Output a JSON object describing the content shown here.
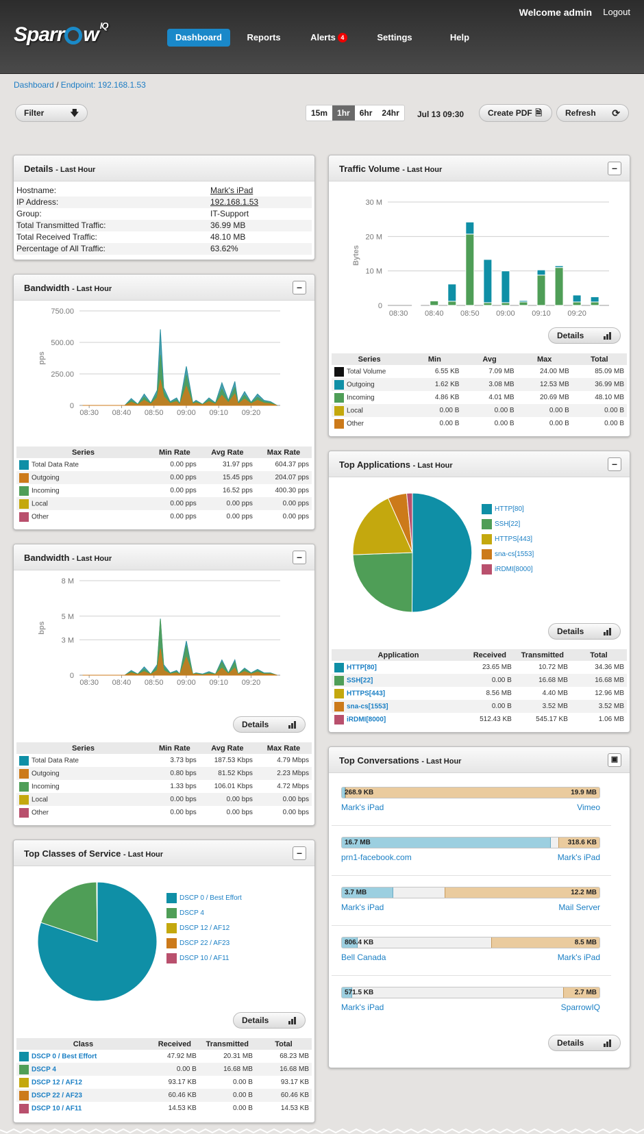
{
  "header": {
    "welcome": "Welcome admin",
    "logout": "Logout",
    "logo": "Sparr",
    "logo_tail": "w",
    "logo_sup": "IQ"
  },
  "nav": [
    {
      "label": "Dashboard"
    },
    {
      "label": "Reports"
    },
    {
      "label": "Alerts",
      "badge": "4"
    },
    {
      "label": "Settings"
    },
    {
      "label": "Help"
    }
  ],
  "breadcrumb": {
    "home": "Dashboard",
    "sep": "/",
    "current": "Endpoint: 192.168.1.53"
  },
  "toolbar": {
    "filter": "Filter",
    "ranges": [
      "15m",
      "1hr",
      "6hr",
      "24hr"
    ],
    "selected_range": "1hr",
    "datetime": "Jul 13 09:30",
    "create_pdf": "Create PDF",
    "refresh": "Refresh"
  },
  "details": {
    "title": "Details",
    "subtitle": "- Last Hour",
    "rows": [
      {
        "label": "Hostname:",
        "value": "Mark's iPad"
      },
      {
        "label": "IP Address:",
        "value": "192.168.1.53"
      },
      {
        "label": "Group:",
        "value": "IT-Support"
      },
      {
        "label": "Total Transmitted Traffic:",
        "value": "36.99 MB"
      },
      {
        "label": "Total Received Traffic:",
        "value": "48.10 MB"
      },
      {
        "label": "Percentage of All Traffic:",
        "value": "63.62%"
      }
    ]
  },
  "bw_pps": {
    "title": "Bandwidth",
    "subtitle": "- Last Hour",
    "headers": [
      "Series",
      "Min Rate",
      "Avg Rate",
      "Max Rate"
    ],
    "rows": [
      {
        "name": "Total Data Rate",
        "color": "#0f8fa6",
        "min": "0.00 pps",
        "avg": "31.97 pps",
        "max": "604.37 pps"
      },
      {
        "name": "Outgoing",
        "color": "#cc7a1a",
        "min": "0.00 pps",
        "avg": "15.45 pps",
        "max": "204.07 pps"
      },
      {
        "name": "Incoming",
        "color": "#4f9e57",
        "min": "0.00 pps",
        "avg": "16.52 pps",
        "max": "400.30 pps"
      },
      {
        "name": "Local",
        "color": "#c4a80e",
        "min": "0.00 pps",
        "avg": "0.00 pps",
        "max": "0.00 pps"
      },
      {
        "name": "Other",
        "color": "#b9506d",
        "min": "0.00 pps",
        "avg": "0.00 pps",
        "max": "0.00 pps"
      }
    ]
  },
  "bw_bps": {
    "title": "Bandwidth",
    "subtitle": "- Last Hour",
    "details": "Details",
    "headers": [
      "Series",
      "Min Rate",
      "Avg Rate",
      "Max Rate"
    ],
    "rows": [
      {
        "name": "Total Data Rate",
        "color": "#0f8fa6",
        "min": "3.73 bps",
        "avg": "187.53 Kbps",
        "max": "4.79 Mbps"
      },
      {
        "name": "Outgoing",
        "color": "#cc7a1a",
        "min": "0.80 bps",
        "avg": "81.52 Kbps",
        "max": "2.23 Mbps"
      },
      {
        "name": "Incoming",
        "color": "#4f9e57",
        "min": "1.33 bps",
        "avg": "106.01 Kbps",
        "max": "4.72 Mbps"
      },
      {
        "name": "Local",
        "color": "#c4a80e",
        "min": "0.00 bps",
        "avg": "0.00 bps",
        "max": "0.00 bps"
      },
      {
        "name": "Other",
        "color": "#b9506d",
        "min": "0.00 bps",
        "avg": "0.00 bps",
        "max": "0.00 bps"
      }
    ]
  },
  "cos": {
    "title": "Top Classes of Service",
    "subtitle": "- Last Hour",
    "details": "Details",
    "headers": [
      "Class",
      "Received",
      "Transmitted",
      "Total"
    ],
    "rows": [
      {
        "name": "DSCP 0 / Best Effort",
        "color": "#0f8fa6",
        "rx": "47.92 MB",
        "tx": "20.31 MB",
        "total": "68.23 MB"
      },
      {
        "name": "DSCP 4",
        "color": "#4f9e57",
        "rx": "0.00 B",
        "tx": "16.68 MB",
        "total": "16.68 MB"
      },
      {
        "name": "DSCP 12 / AF12",
        "color": "#c4a80e",
        "rx": "93.17 KB",
        "tx": "0.00 B",
        "total": "93.17 KB"
      },
      {
        "name": "DSCP 22 / AF23",
        "color": "#cc7a1a",
        "rx": "60.46 KB",
        "tx": "0.00 B",
        "total": "60.46 KB"
      },
      {
        "name": "DSCP 10 / AF11",
        "color": "#b9506d",
        "rx": "14.53 KB",
        "tx": "0.00 B",
        "total": "14.53 KB"
      }
    ]
  },
  "traffic": {
    "title": "Traffic Volume",
    "subtitle": "- Last Hour",
    "details": "Details",
    "headers": [
      "Series",
      "Min",
      "Avg",
      "Max",
      "Total"
    ],
    "rows": [
      {
        "name": "Total Volume",
        "color": "#111111",
        "min": "6.55 KB",
        "avg": "7.09 MB",
        "max": "24.00 MB",
        "total": "85.09 MB"
      },
      {
        "name": "Outgoing",
        "color": "#0f8fa6",
        "min": "1.62 KB",
        "avg": "3.08 MB",
        "max": "12.53 MB",
        "total": "36.99 MB"
      },
      {
        "name": "Incoming",
        "color": "#4f9e57",
        "min": "4.86 KB",
        "avg": "4.01 MB",
        "max": "20.69 MB",
        "total": "48.10 MB"
      },
      {
        "name": "Local",
        "color": "#c4a80e",
        "min": "0.00 B",
        "avg": "0.00 B",
        "max": "0.00 B",
        "total": "0.00 B"
      },
      {
        "name": "Other",
        "color": "#cc7a1a",
        "min": "0.00 B",
        "avg": "0.00 B",
        "max": "0.00 B",
        "total": "0.00 B"
      }
    ]
  },
  "apps": {
    "title": "Top Applications",
    "subtitle": "- Last Hour",
    "details": "Details",
    "headers": [
      "Application",
      "Received",
      "Transmitted",
      "Total"
    ],
    "rows": [
      {
        "name": "HTTP[80]",
        "color": "#0f8fa6",
        "rx": "23.65 MB",
        "tx": "10.72 MB",
        "total": "34.36 MB"
      },
      {
        "name": "SSH[22]",
        "color": "#4f9e57",
        "rx": "0.00 B",
        "tx": "16.68 MB",
        "total": "16.68 MB"
      },
      {
        "name": "HTTPS[443]",
        "color": "#c4a80e",
        "rx": "8.56 MB",
        "tx": "4.40 MB",
        "total": "12.96 MB"
      },
      {
        "name": "sna-cs[1553]",
        "color": "#cc7a1a",
        "rx": "0.00 B",
        "tx": "3.52 MB",
        "total": "3.52 MB"
      },
      {
        "name": "iRDMI[8000]",
        "color": "#b9506d",
        "rx": "512.43 KB",
        "tx": "545.17 KB",
        "total": "1.06 MB"
      }
    ]
  },
  "conversations": {
    "title": "Top Conversations",
    "subtitle": "- Last Hour",
    "details": "Details",
    "rows": [
      {
        "left": "268.9 KB",
        "right": "19.9 MB",
        "lfrac": 0.013,
        "rfrac": 0.987,
        "a": "Mark's iPad",
        "b": "Vimeo"
      },
      {
        "left": "16.7 MB",
        "right": "318.6 KB",
        "lfrac": 0.81,
        "rfrac": 0.16,
        "a": "prn1-facebook.com",
        "b": "Mark's iPad"
      },
      {
        "left": "3.7 MB",
        "right": "12.2 MB",
        "lfrac": 0.2,
        "rfrac": 0.6,
        "a": "Mark's iPad",
        "b": "Mail Server"
      },
      {
        "left": "806.4 KB",
        "right": "8.5 MB",
        "lfrac": 0.06,
        "rfrac": 0.42,
        "a": "Bell Canada",
        "b": "Mark's iPad"
      },
      {
        "left": "571.5 KB",
        "right": "2.7 MB",
        "lfrac": 0.04,
        "rfrac": 0.14,
        "a": "Mark's iPad",
        "b": "SparrowIQ"
      }
    ]
  },
  "chart_data": [
    {
      "type": "area",
      "name": "bandwidth_pps",
      "ylabel": "pps",
      "ylim": [
        0,
        750
      ],
      "yticks": [
        "750.00",
        "500.00",
        "250.00",
        "0"
      ],
      "xticks": [
        "08:30",
        "08:40",
        "08:50",
        "09:00",
        "09:10",
        "09:20"
      ],
      "x": [
        "08:28",
        "08:41",
        "08:43",
        "08:45",
        "08:47",
        "08:49",
        "08:51",
        "08:52",
        "08:53",
        "08:55",
        "08:57",
        "08:58",
        "09:00",
        "09:02",
        "09:03",
        "09:05",
        "09:07",
        "09:09",
        "09:11",
        "09:13",
        "09:15",
        "09:16",
        "09:18",
        "09:20",
        "09:22",
        "09:24",
        "09:26",
        "09:28"
      ],
      "series": [
        {
          "name": "Total Data Rate",
          "values": [
            0,
            0,
            55,
            10,
            90,
            20,
            120,
            604,
            140,
            30,
            60,
            15,
            310,
            20,
            40,
            10,
            60,
            20,
            180,
            40,
            190,
            20,
            110,
            25,
            90,
            40,
            30,
            0
          ]
        },
        {
          "name": "Incoming",
          "values": [
            0,
            0,
            40,
            8,
            65,
            15,
            90,
            400,
            110,
            22,
            45,
            10,
            240,
            15,
            30,
            8,
            45,
            15,
            130,
            30,
            140,
            15,
            80,
            20,
            65,
            30,
            22,
            0
          ]
        },
        {
          "name": "Outgoing",
          "values": [
            0,
            0,
            25,
            5,
            40,
            10,
            60,
            204,
            70,
            15,
            30,
            6,
            150,
            10,
            20,
            5,
            30,
            10,
            80,
            20,
            90,
            10,
            50,
            12,
            40,
            18,
            12,
            0
          ]
        }
      ]
    },
    {
      "type": "area",
      "name": "bandwidth_bps",
      "ylabel": "bps",
      "ylim": [
        0,
        8
      ],
      "yticks": [
        "8 M",
        "5 M",
        "3 M",
        "0"
      ],
      "xticks": [
        "08:30",
        "08:40",
        "08:50",
        "09:00",
        "09:10",
        "09:20"
      ],
      "x": [
        "08:28",
        "08:41",
        "08:43",
        "08:45",
        "08:47",
        "08:49",
        "08:51",
        "08:52",
        "08:53",
        "08:55",
        "08:57",
        "08:58",
        "09:00",
        "09:02",
        "09:03",
        "09:05",
        "09:07",
        "09:09",
        "09:11",
        "09:13",
        "09:15",
        "09:16",
        "09:18",
        "09:20",
        "09:22",
        "09:24",
        "09:26",
        "09:28"
      ],
      "series": [
        {
          "name": "Total Data Rate",
          "values": [
            0,
            0,
            0.4,
            0.1,
            0.7,
            0.1,
            0.9,
            4.79,
            0.9,
            0.2,
            0.4,
            0.1,
            2.9,
            0.1,
            0.2,
            0.1,
            0.3,
            0.1,
            1.3,
            0.2,
            1.3,
            0.1,
            0.6,
            0.2,
            0.5,
            0.2,
            0.2,
            0
          ]
        },
        {
          "name": "Incoming",
          "values": [
            0,
            0,
            0.3,
            0.1,
            0.5,
            0.1,
            0.7,
            4.72,
            0.7,
            0.15,
            0.3,
            0.1,
            2.5,
            0.1,
            0.15,
            0.05,
            0.2,
            0.1,
            1.1,
            0.15,
            1.1,
            0.1,
            0.5,
            0.15,
            0.4,
            0.15,
            0.15,
            0
          ]
        },
        {
          "name": "Outgoing",
          "values": [
            0,
            0,
            0.2,
            0.05,
            0.3,
            0.05,
            0.4,
            2.23,
            0.4,
            0.1,
            0.2,
            0.05,
            1.5,
            0.05,
            0.1,
            0.02,
            0.1,
            0.05,
            0.6,
            0.1,
            0.6,
            0.05,
            0.3,
            0.1,
            0.25,
            0.1,
            0.1,
            0
          ]
        }
      ]
    },
    {
      "type": "bar",
      "name": "traffic_volume",
      "ylabel": "Bytes",
      "ylim": [
        0,
        30
      ],
      "yticks": [
        "30 M",
        "20 M",
        "10 M",
        "0"
      ],
      "xticks": [
        "08:30",
        "08:40",
        "08:50",
        "09:00",
        "09:10",
        "09:20"
      ],
      "categories": [
        "08:35",
        "08:40",
        "08:45",
        "08:50",
        "08:55",
        "09:00",
        "09:05",
        "09:10",
        "09:15",
        "09:20",
        "09:25"
      ],
      "series": [
        {
          "name": "Outgoing",
          "values": [
            0.1,
            0.2,
            5.0,
            3.5,
            12.53,
            9.2,
            0.4,
            1.5,
            0.5,
            2.0,
            1.5
          ]
        },
        {
          "name": "Incoming",
          "values": [
            0.1,
            1.3,
            1.2,
            20.69,
            0.8,
            0.8,
            1.0,
            8.8,
            11.0,
            1.0,
            1.0
          ]
        }
      ]
    },
    {
      "type": "pie",
      "name": "top_applications",
      "categories": [
        "HTTP[80]",
        "SSH[22]",
        "HTTPS[443]",
        "sna-cs[1553]",
        "iRDMI[8000]"
      ],
      "values": [
        34.36,
        16.68,
        12.96,
        3.52,
        1.06
      ]
    },
    {
      "type": "pie",
      "name": "top_classes_of_service",
      "categories": [
        "DSCP 0 / Best Effort",
        "DSCP 4",
        "DSCP 12 / AF12",
        "DSCP 22 / AF23",
        "DSCP 10 / AF11"
      ],
      "values": [
        68.23,
        16.68,
        0.09,
        0.06,
        0.01
      ]
    }
  ]
}
